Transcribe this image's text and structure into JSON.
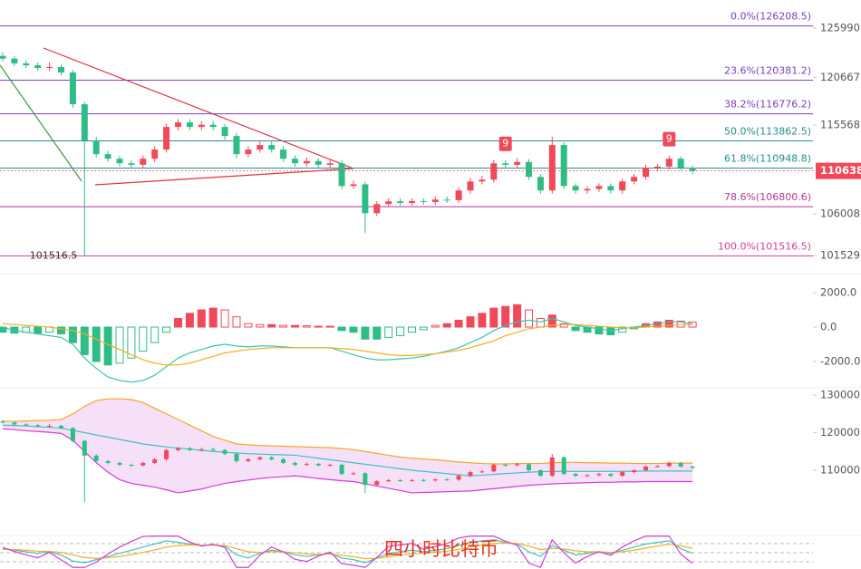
{
  "chart_data": [
    {
      "type": "candlestick",
      "open": [
        123000,
        122700,
        122190,
        121990,
        121700,
        121800,
        121210,
        117800,
        113900,
        112440,
        111950,
        111460,
        111300,
        111950,
        112930,
        115360,
        115850,
        115360,
        115600,
        115360,
        114390,
        112440,
        112930,
        113420,
        112930,
        111950,
        111460,
        111700,
        111300,
        111460,
        109020,
        109200,
        106100,
        107080,
        107370,
        107200,
        107400,
        107300,
        107560,
        107500,
        108540,
        109510,
        109700,
        111460,
        111300,
        111600,
        110000,
        108540,
        113420,
        109020,
        108540,
        108700,
        109020,
        108540,
        109510,
        110000,
        110980,
        111100,
        111950,
        110980
      ],
      "high": [
        123400,
        123000,
        122500,
        122300,
        122300,
        122100,
        121500,
        118100,
        114300,
        112800,
        112300,
        111800,
        112300,
        113300,
        115700,
        116200,
        116200,
        116000,
        116000,
        115700,
        114700,
        113300,
        113800,
        113800,
        113300,
        112300,
        112100,
        112000,
        111800,
        111800,
        109600,
        109500,
        107400,
        107700,
        107700,
        107700,
        107700,
        107900,
        107900,
        108900,
        109900,
        110100,
        111800,
        111800,
        112000,
        111900,
        110300,
        114300,
        113700,
        109300,
        109000,
        109300,
        109300,
        109800,
        110300,
        111300,
        111400,
        112300,
        112200,
        111200
      ],
      "low": [
        122400,
        121900,
        121700,
        121400,
        121400,
        120900,
        117400,
        101516.5,
        112100,
        111600,
        111100,
        110900,
        111000,
        111600,
        112600,
        115000,
        115000,
        115000,
        115000,
        114000,
        112000,
        112100,
        112600,
        112600,
        111600,
        111100,
        111100,
        111000,
        111000,
        108700,
        108700,
        104000,
        105800,
        106800,
        106900,
        106900,
        107000,
        107000,
        107200,
        107200,
        108200,
        109200,
        109400,
        111000,
        111000,
        109700,
        108200,
        108200,
        108700,
        108200,
        108200,
        108400,
        108200,
        108200,
        109200,
        109700,
        110700,
        110800,
        110700,
        110300
      ],
      "close": [
        122700,
        122190,
        121990,
        121700,
        121800,
        121210,
        117800,
        113900,
        112440,
        111950,
        111460,
        111300,
        111950,
        112930,
        115360,
        115850,
        115360,
        115600,
        115360,
        114390,
        112440,
        112930,
        113420,
        112930,
        111950,
        111460,
        111700,
        111300,
        111460,
        109020,
        109200,
        106100,
        107080,
        107370,
        107200,
        107400,
        107300,
        107560,
        107500,
        108540,
        109510,
        109700,
        111460,
        111300,
        111600,
        110000,
        108540,
        113420,
        109020,
        108540,
        108700,
        109020,
        108540,
        109510,
        110000,
        110980,
        111100,
        111950,
        110980,
        110640
      ],
      "up_color": "#f0495a",
      "down_color": "#2ebd85",
      "ylim": [
        99800,
        129000
      ],
      "yticks": [
        {
          "value": 125990,
          "label": "125990."
        },
        {
          "value": 120667,
          "label": "120667."
        },
        {
          "value": 115568,
          "label": "115568."
        },
        {
          "value": 106008,
          "label": "106008."
        },
        {
          "value": 101529,
          "label": "101529."
        }
      ],
      "last_price": {
        "value": 110638,
        "label": "110638.",
        "color": "#f0495a"
      },
      "fib_levels": [
        {
          "label": "0.0%(126208.5)",
          "value": 126208.5,
          "color": "#7b3fbf"
        },
        {
          "label": "23.6%(120381.2)",
          "value": 120381.2,
          "color": "#7b3fbf"
        },
        {
          "label": "38.2%(116776.2)",
          "value": 116776.2,
          "color": "#7b3fbf"
        },
        {
          "label": "50.0%(113862.5)",
          "value": 113862.5,
          "color": "#2a8c8c"
        },
        {
          "label": "61.8%(110948.8)",
          "value": 110948.8,
          "color": "#2a8c8c"
        },
        {
          "label": "78.6%(106800.6)",
          "value": 106800.6,
          "color": "#b03a9a"
        },
        {
          "label": "100.0%(101516.5)",
          "value": 101516.5,
          "color": "#d040a0"
        }
      ],
      "low_label": 101516.5,
      "markers": [
        {
          "label": "9",
          "index": 43
        },
        {
          "label": "9",
          "index": 57
        }
      ]
    },
    {
      "type": "macd",
      "histogram": [
        -300,
        -350,
        -300,
        -350,
        -300,
        -400,
        -900,
        -1600,
        -2000,
        -2200,
        -2100,
        -1800,
        -1400,
        -900,
        -300,
        500,
        800,
        1000,
        1100,
        1000,
        600,
        200,
        150,
        150,
        100,
        100,
        80,
        50,
        50,
        -200,
        -300,
        -700,
        -700,
        -600,
        -500,
        -300,
        -150,
        100,
        200,
        400,
        600,
        800,
        1100,
        1200,
        1300,
        1000,
        500,
        700,
        200,
        -200,
        -300,
        -400,
        -450,
        -300,
        -100,
        200,
        300,
        400,
        350,
        300
      ],
      "dif": [
        0,
        -200,
        -300,
        -400,
        -500,
        -600,
        -1000,
        -1800,
        -2400,
        -2900,
        -3100,
        -3200,
        -3100,
        -2800,
        -2300,
        -1800,
        -1500,
        -1300,
        -1100,
        -1000,
        -1100,
        -1150,
        -1100,
        -1100,
        -1150,
        -1200,
        -1200,
        -1200,
        -1200,
        -1400,
        -1600,
        -1800,
        -1900,
        -1900,
        -1850,
        -1800,
        -1700,
        -1550,
        -1400,
        -1200,
        -900,
        -600,
        -200,
        100,
        300,
        400,
        300,
        500,
        300,
        100,
        0,
        -100,
        -200,
        -100,
        0,
        100,
        200,
        300,
        300,
        200
      ],
      "dea": [
        200,
        150,
        100,
        50,
        0,
        -100,
        -200,
        -400,
        -700,
        -1000,
        -1300,
        -1600,
        -1900,
        -2100,
        -2200,
        -2200,
        -2100,
        -1900,
        -1700,
        -1500,
        -1400,
        -1300,
        -1250,
        -1200,
        -1200,
        -1200,
        -1200,
        -1200,
        -1200,
        -1250,
        -1300,
        -1400,
        -1500,
        -1600,
        -1650,
        -1650,
        -1600,
        -1550,
        -1450,
        -1350,
        -1200,
        -1000,
        -800,
        -500,
        -300,
        -100,
        0,
        100,
        150,
        150,
        100,
        50,
        0,
        -50,
        -50,
        0,
        50,
        100,
        150,
        150
      ],
      "positive_color": "#f0495a",
      "negative_color": "#2ebd85",
      "dif_color": "#3cc3b0",
      "dea_color": "#f2b01e",
      "ylim": [
        -3370,
        2950
      ],
      "yticks": [
        {
          "value": 2000,
          "label": "2000.0"
        },
        {
          "value": 0,
          "label": "0.0"
        },
        {
          "value": -2000,
          "label": "-2000.0"
        }
      ]
    },
    {
      "type": "bollinger",
      "upper": [
        123000,
        123000,
        123100,
        123200,
        123300,
        123500,
        125000,
        127000,
        128500,
        129000,
        129000,
        128800,
        128000,
        126500,
        125000,
        123500,
        122000,
        120500,
        119000,
        118000,
        117000,
        116800,
        116600,
        116500,
        116400,
        116300,
        116200,
        116100,
        116000,
        115800,
        115500,
        115000,
        114500,
        114000,
        113500,
        113200,
        113000,
        112800,
        112500,
        112200,
        112000,
        111800,
        111700,
        111700,
        111800,
        111800,
        111800,
        112000,
        112100,
        112100,
        112000,
        112000,
        111900,
        111900,
        111800,
        111800,
        111800,
        111900,
        111900,
        111900
      ],
      "middle": [
        122000,
        121900,
        121800,
        121600,
        121400,
        121200,
        120600,
        120000,
        119400,
        118800,
        118200,
        117600,
        117000,
        116600,
        116200,
        115900,
        115600,
        115300,
        115000,
        114800,
        114600,
        114400,
        114300,
        114200,
        114100,
        114000,
        113600,
        113200,
        112800,
        112400,
        112000,
        111600,
        111200,
        110800,
        110400,
        110000,
        109700,
        109400,
        109100,
        108800,
        108500,
        108700,
        108900,
        109100,
        109300,
        109500,
        109600,
        109700,
        109700,
        109700,
        109700,
        109700,
        109700,
        109700,
        109700,
        109800,
        109800,
        109800,
        109800,
        109800
      ],
      "lower": [
        121000,
        120800,
        120500,
        120300,
        120100,
        119800,
        118000,
        115000,
        112000,
        109500,
        107500,
        106500,
        106000,
        105500,
        104800,
        104000,
        104500,
        105000,
        105800,
        106500,
        107000,
        107400,
        107800,
        108100,
        108300,
        108500,
        108200,
        107800,
        107500,
        107200,
        107000,
        106400,
        105800,
        105200,
        104600,
        104000,
        104100,
        104200,
        104300,
        104400,
        104500,
        104800,
        105100,
        105400,
        105700,
        106000,
        106200,
        106400,
        106500,
        106600,
        106700,
        106800,
        106800,
        106900,
        106900,
        107000,
        107000,
        107000,
        107000,
        107000
      ],
      "upper_color": "#f5a623",
      "middle_color": "#3cc3c3",
      "lower_color": "#d63ad6",
      "band_color": "#f4d8f6",
      "ylim": [
        92900,
        131450
      ],
      "yticks": [
        {
          "value": 130000,
          "label": "130000."
        },
        {
          "value": 120000,
          "label": "120000."
        },
        {
          "value": 110000,
          "label": "110000."
        }
      ]
    },
    {
      "type": "kdj",
      "k": [
        60,
        55,
        50,
        45,
        50,
        40,
        20,
        15,
        25,
        35,
        45,
        55,
        65,
        75,
        85,
        80,
        75,
        70,
        72,
        68,
        40,
        30,
        45,
        55,
        50,
        40,
        35,
        40,
        45,
        30,
        25,
        15,
        30,
        45,
        50,
        55,
        50,
        55,
        60,
        70,
        80,
        85,
        88,
        80,
        75,
        50,
        35,
        70,
        55,
        40,
        45,
        50,
        45,
        55,
        65,
        75,
        80,
        85,
        60,
        45
      ],
      "d": [
        58,
        57,
        55,
        52,
        51,
        48,
        40,
        32,
        29,
        31,
        35,
        41,
        48,
        56,
        65,
        70,
        72,
        71,
        71,
        70,
        60,
        50,
        48,
        50,
        50,
        47,
        43,
        42,
        43,
        39,
        34,
        28,
        29,
        34,
        39,
        44,
        46,
        49,
        52,
        58,
        65,
        72,
        77,
        78,
        77,
        68,
        57,
        61,
        59,
        53,
        50,
        50,
        48,
        50,
        55,
        62,
        68,
        74,
        69,
        61
      ],
      "j": [
        64,
        51,
        40,
        31,
        48,
        24,
        0,
        0,
        17,
        43,
        65,
        83,
        99,
        100,
        100,
        100,
        81,
        68,
        74,
        64,
        0,
        0,
        39,
        65,
        50,
        26,
        19,
        36,
        49,
        12,
        7,
        0,
        32,
        67,
        72,
        77,
        58,
        67,
        76,
        94,
        100,
        100,
        100,
        84,
        71,
        14,
        0,
        88,
        47,
        14,
        35,
        50,
        39,
        65,
        85,
        100,
        100,
        100,
        42,
        13
      ],
      "k_color": "#3cc3c3",
      "d_color": "#f2b01e",
      "j_color": "#d63ad6",
      "ylim": [
        -5,
        105
      ]
    }
  ],
  "watermark": "四小时比特币"
}
